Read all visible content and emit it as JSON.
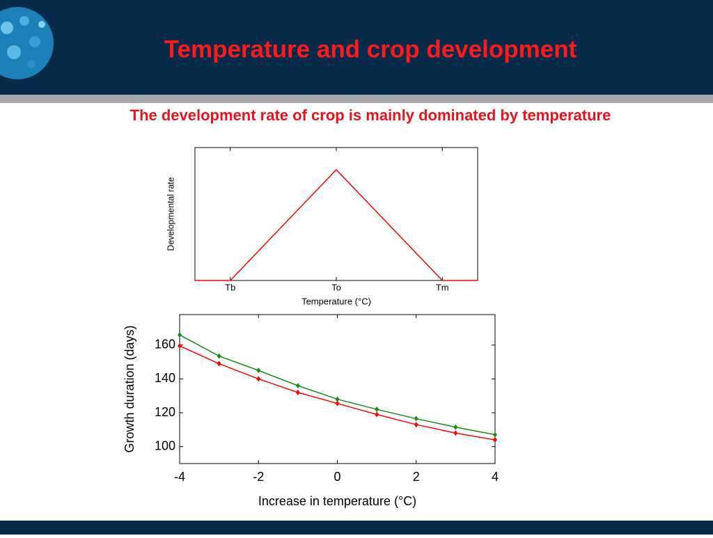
{
  "slide": {
    "title": "Temperature and crop development",
    "subtitle": "The development rate of crop is mainly dominated by temperature"
  },
  "chart_data": [
    {
      "type": "line",
      "xlabel": "Temperature (°C)",
      "ylabel": "Developmental rate",
      "x": [
        0,
        1,
        4,
        7,
        8
      ],
      "xlim": [
        0,
        8
      ],
      "xticks": [
        {
          "value": 1,
          "label": "Tb"
        },
        {
          "value": 4,
          "label": "To"
        },
        {
          "value": 7,
          "label": "Tm"
        }
      ],
      "ylim": [
        0,
        6
      ],
      "series": [
        {
          "color": "#ff0000",
          "values": [
            0,
            0,
            5,
            0,
            0
          ]
        }
      ]
    },
    {
      "type": "line",
      "xlabel": "Increase in temperature (°C)",
      "ylabel": "Growth duration (days)",
      "x": [
        -4,
        -3,
        -2,
        -1,
        0,
        1,
        2,
        3,
        4
      ],
      "xlim": [
        -4,
        4
      ],
      "xticks": [
        -4,
        -2,
        0,
        2,
        4
      ],
      "ylim": [
        90,
        178
      ],
      "yticks": [
        100,
        120,
        140,
        160
      ],
      "markers": true,
      "series": [
        {
          "color": "#1a8a1a",
          "values": [
            166,
            153.5,
            145,
            136,
            128,
            122,
            116.5,
            111.5,
            107
          ]
        },
        {
          "color": "#ff0000",
          "values": [
            159.5,
            149,
            140,
            132,
            125.5,
            119,
            113,
            108,
            104
          ]
        }
      ]
    }
  ]
}
